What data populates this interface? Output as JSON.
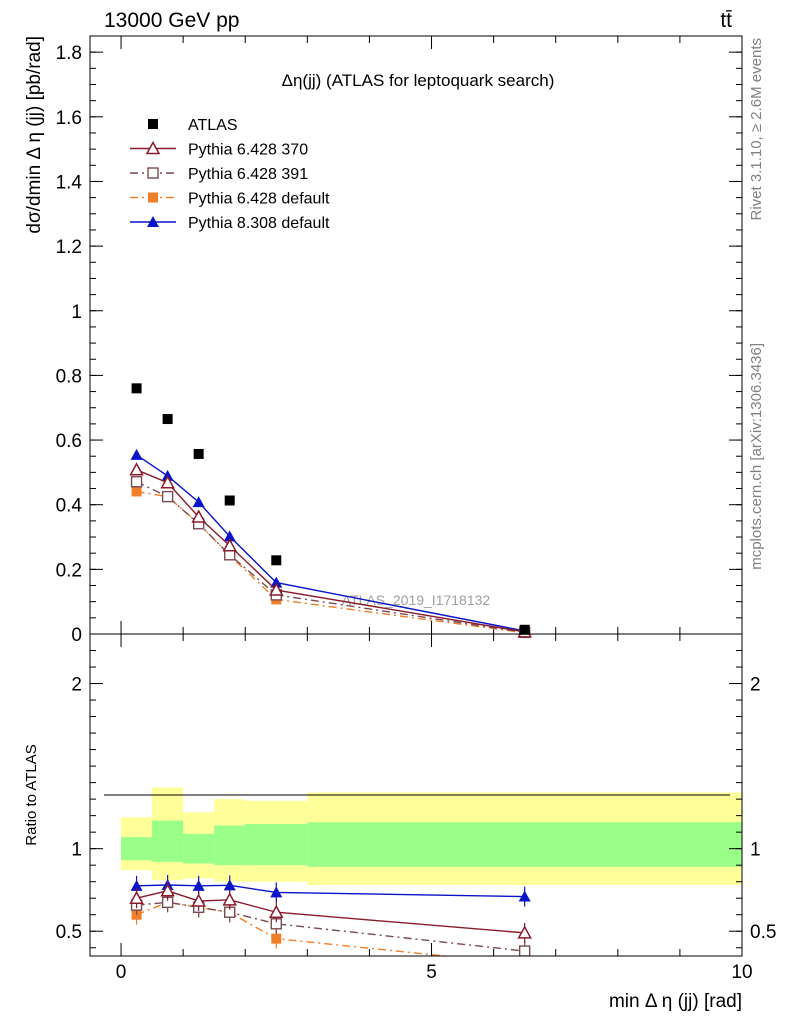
{
  "header": {
    "left": "13000 GeV pp",
    "right": "tt̄"
  },
  "side_labels": {
    "top": "Rivet 3.1.10, ≥ 2.6M events",
    "bottom": "mcplots.cern.ch [arXiv:1306.3436]"
  },
  "watermark": "ATLAS_2019_I1718132",
  "chart_data": [
    {
      "type": "scatter",
      "title": "Δη(jj) (ATLAS for leptoquark search)",
      "ylabel": "dσ/dmin Δ η (jj) [pb/rad]",
      "xlim": [
        -0.5,
        10
      ],
      "ylim": [
        0,
        1.85
      ],
      "yticks": [
        0,
        0.2,
        0.4,
        0.6,
        0.8,
        1,
        1.2,
        1.4,
        1.6,
        1.8
      ],
      "ytick_labels": [
        "0",
        "0.2",
        "0.4",
        "0.6",
        "0.8",
        "1",
        "1.2",
        "1.4",
        "1.6",
        "1.8"
      ],
      "x": [
        0.25,
        0.75,
        1.25,
        1.75,
        2.5,
        6.5
      ],
      "series": [
        {
          "name": "ATLAS",
          "color": "#000000",
          "marker": "square-filled",
          "line": "none",
          "values": [
            0.76,
            0.665,
            0.557,
            0.413,
            0.228,
            0.013
          ]
        },
        {
          "name": "Pythia 6.428 370",
          "color": "#8b1a2a",
          "marker": "triangle-open",
          "line": "solid",
          "values": [
            0.508,
            0.468,
            0.362,
            0.273,
            0.136,
            0.0065
          ]
        },
        {
          "name": "Pythia 6.428 391",
          "color": "#7a4a52",
          "marker": "square-open",
          "line": "dashdot",
          "values": [
            0.471,
            0.425,
            0.341,
            0.245,
            0.121,
            0.005
          ]
        },
        {
          "name": "Pythia 6.428 default",
          "color": "#f07f2a",
          "marker": "square-filled",
          "line": "dashdot",
          "values": [
            0.441,
            0.425,
            0.342,
            0.243,
            0.107,
            0.004
          ]
        },
        {
          "name": "Pythia 8.308 default",
          "color": "#0a14c8",
          "marker": "triangle-filled",
          "line": "solid",
          "values": [
            0.554,
            0.489,
            0.408,
            0.302,
            0.159,
            0.0095
          ]
        }
      ]
    },
    {
      "type": "line",
      "ylabel": "Ratio to ATLAS",
      "xlabel": "min Δ η (jj) [rad]",
      "xlim": [
        -0.5,
        10
      ],
      "ylim": [
        0.35,
        2.3
      ],
      "xticks": [
        0,
        5,
        10
      ],
      "xtick_labels": [
        "0",
        "5",
        "10"
      ],
      "yticks": [
        0.5,
        1,
        2
      ],
      "ytick_labels": [
        "0.5",
        "1",
        "2"
      ],
      "bin_edges": [
        0,
        0.5,
        1,
        1.5,
        2,
        3,
        10
      ],
      "band_inner": [
        [
          0.93,
          1.07
        ],
        [
          0.92,
          1.17
        ],
        [
          0.91,
          1.09
        ],
        [
          0.9,
          1.14
        ],
        [
          0.9,
          1.15
        ],
        [
          0.89,
          1.16
        ]
      ],
      "band_outer": [
        [
          0.87,
          1.19
        ],
        [
          0.81,
          1.37
        ],
        [
          0.82,
          1.22
        ],
        [
          0.8,
          1.3
        ],
        [
          0.8,
          1.29
        ],
        [
          0.78,
          1.34
        ]
      ],
      "x": [
        0.25,
        0.75,
        1.25,
        1.75,
        2.5,
        6.5
      ],
      "series": [
        {
          "name": "Pythia 6.428 370",
          "color": "#8b1a2a",
          "marker": "triangle-open",
          "line": "solid",
          "values": [
            0.7,
            0.745,
            0.683,
            0.69,
            0.615,
            0.49
          ]
        },
        {
          "name": "Pythia 6.428 391",
          "color": "#7a4a52",
          "marker": "square-open",
          "line": "dashdot",
          "values": [
            0.658,
            0.675,
            0.645,
            0.615,
            0.545,
            0.38
          ]
        },
        {
          "name": "Pythia 6.428 default",
          "color": "#f07f2a",
          "marker": "square-filled",
          "line": "dashdot",
          "values": [
            0.6,
            0.675,
            0.645,
            0.613,
            0.455,
            0.3
          ]
        },
        {
          "name": "Pythia 8.308 default",
          "color": "#0a14c8",
          "marker": "triangle-filled",
          "line": "solid",
          "values": [
            0.775,
            0.78,
            0.775,
            0.778,
            0.735,
            0.71
          ]
        }
      ]
    }
  ]
}
